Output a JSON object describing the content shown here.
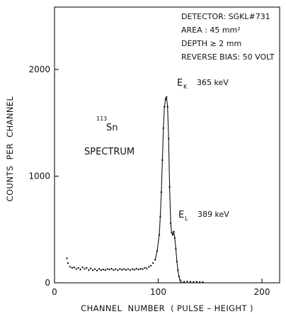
{
  "chart_data": {
    "type": "scatter",
    "title": "",
    "xlabel": "CHANNEL  NUMBER  ( PULSE – HEIGHT )",
    "ylabel": "COUNTS  PER  CHANNEL",
    "xlim": [
      0,
      230
    ],
    "ylim": [
      0,
      2650
    ],
    "x_ticks": [
      0,
      100,
      200
    ],
    "x_tick_labels": [
      "0",
      "100",
      "200"
    ],
    "y_ticks": [
      0,
      1000,
      2000
    ],
    "y_tick_labels": [
      "0",
      "1000",
      "2000"
    ],
    "grid": false,
    "detector_info": [
      "DETECTOR: SGKL#731",
      "AREA : 45 mm²",
      "DEPTH ≥ 2 mm",
      "REVERSE BIAS: 50 VOLT"
    ],
    "sample_label": {
      "mass": "113",
      "element": "Sn",
      "text": "SPECTRUM"
    },
    "peaks": [
      {
        "symbol": "E",
        "sub": "K",
        "energy": "365 keV",
        "channel": 108,
        "counts": 1740
      },
      {
        "symbol": "E",
        "sub": "L",
        "energy": "389 keV",
        "channel": 115,
        "counts": 480
      }
    ],
    "series": [
      {
        "points": [
          [
            12,
            230
          ],
          [
            13,
            185
          ],
          [
            15,
            150
          ],
          [
            17,
            140
          ],
          [
            19,
            145
          ],
          [
            21,
            130
          ],
          [
            23,
            140
          ],
          [
            25,
            125
          ],
          [
            27,
            145
          ],
          [
            29,
            130
          ],
          [
            31,
            140
          ],
          [
            33,
            120
          ],
          [
            35,
            135
          ],
          [
            37,
            118
          ],
          [
            39,
            128
          ],
          [
            41,
            115
          ],
          [
            43,
            130
          ],
          [
            45,
            120
          ],
          [
            47,
            125
          ],
          [
            49,
            118
          ],
          [
            51,
            130
          ],
          [
            53,
            125
          ],
          [
            55,
            132
          ],
          [
            57,
            120
          ],
          [
            59,
            128
          ],
          [
            61,
            118
          ],
          [
            63,
            130
          ],
          [
            65,
            122
          ],
          [
            67,
            128
          ],
          [
            69,
            120
          ],
          [
            71,
            130
          ],
          [
            73,
            118
          ],
          [
            75,
            128
          ],
          [
            77,
            122
          ],
          [
            79,
            132
          ],
          [
            81,
            125
          ],
          [
            83,
            130
          ],
          [
            85,
            128
          ],
          [
            87,
            140
          ],
          [
            89,
            135
          ],
          [
            91,
            150
          ],
          [
            93,
            160
          ],
          [
            95,
            185
          ],
          [
            97,
            215
          ],
          [
            99,
            300
          ],
          [
            101,
            450
          ],
          [
            102,
            620
          ],
          [
            103,
            850
          ],
          [
            104,
            1150
          ],
          [
            105,
            1450
          ],
          [
            106,
            1650
          ],
          [
            107,
            1720
          ],
          [
            108,
            1740
          ],
          [
            109,
            1650
          ],
          [
            110,
            1350
          ],
          [
            111,
            900
          ],
          [
            112,
            560
          ],
          [
            113,
            470
          ],
          [
            114,
            450
          ],
          [
            115,
            480
          ],
          [
            116,
            420
          ],
          [
            117,
            320
          ],
          [
            118,
            200
          ],
          [
            119,
            120
          ],
          [
            120,
            60
          ],
          [
            121,
            25
          ],
          [
            122,
            10
          ],
          [
            125,
            10
          ],
          [
            128,
            12
          ],
          [
            131,
            10
          ],
          [
            134,
            8
          ],
          [
            137,
            10
          ],
          [
            140,
            8
          ],
          [
            143,
            6
          ]
        ]
      }
    ]
  }
}
